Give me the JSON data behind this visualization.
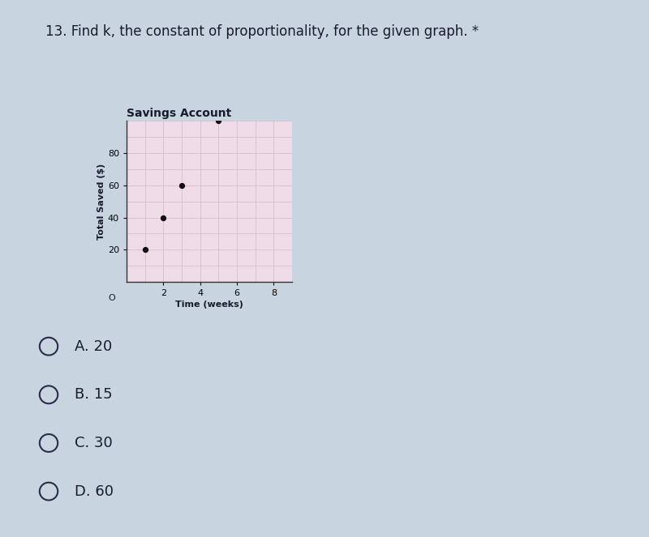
{
  "title": "13. Find k, the constant of proportionality, for the given graph. *",
  "graph_title": "Savings Account",
  "xlabel": "Time (weeks)",
  "ylabel": "Total Saved ($)",
  "points_x": [
    1,
    2,
    3,
    5
  ],
  "points_y": [
    20,
    40,
    60,
    100
  ],
  "xlim": [
    0,
    9
  ],
  "ylim": [
    0,
    100
  ],
  "xticks": [
    2,
    4,
    6,
    8
  ],
  "yticks": [
    20,
    40,
    60,
    80
  ],
  "grid_minor_x": [
    0,
    1,
    2,
    3,
    4,
    5,
    6,
    7,
    8,
    9
  ],
  "grid_minor_y": [
    0,
    10,
    20,
    30,
    40,
    50,
    60,
    70,
    80,
    90,
    100
  ],
  "grid_color": "#d4b8c8",
  "plot_bg": "#f0dce8",
  "page_bg": "#c8d4e0",
  "dot_color": "#111111",
  "dot_size": 18,
  "choices": [
    "A. 20",
    "B. 15",
    "C. 30",
    "D. 60"
  ],
  "title_fontsize": 12,
  "graph_title_fontsize": 10,
  "axis_label_fontsize": 8,
  "tick_fontsize": 8,
  "choice_fontsize": 13
}
